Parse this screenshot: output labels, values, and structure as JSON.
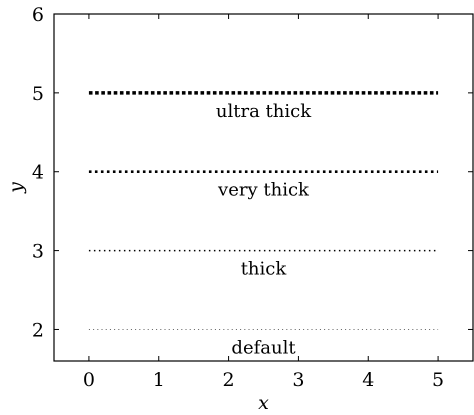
{
  "chart_data": {
    "type": "line",
    "title": "",
    "xlabel": "x",
    "ylabel": "y",
    "xlim": [
      -0.5,
      5.5
    ],
    "ylim": [
      1.6,
      6
    ],
    "xticks": [
      0,
      1,
      2,
      3,
      4,
      5
    ],
    "yticks": [
      2,
      3,
      4,
      5,
      6
    ],
    "grid": false,
    "series": [
      {
        "label": "default",
        "x": [
          0,
          5
        ],
        "y": [
          2,
          2
        ],
        "style": "dotted",
        "weight": "default"
      },
      {
        "label": "thick",
        "x": [
          0,
          5
        ],
        "y": [
          3,
          3
        ],
        "style": "dotted",
        "weight": "thick"
      },
      {
        "label": "very thick",
        "x": [
          0,
          5
        ],
        "y": [
          4,
          4
        ],
        "style": "dotted",
        "weight": "very thick"
      },
      {
        "label": "ultra thick",
        "x": [
          0,
          5
        ],
        "y": [
          5,
          5
        ],
        "style": "dotted",
        "weight": "ultra thick"
      }
    ],
    "line_color": "#000000"
  }
}
